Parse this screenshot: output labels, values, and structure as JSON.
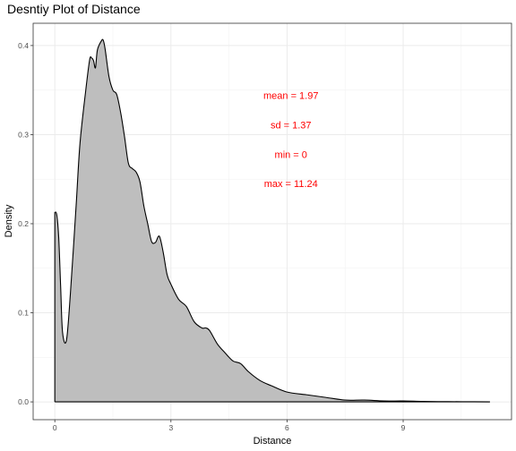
{
  "chart_data": {
    "type": "area",
    "title": "Desntiy Plot of Distance",
    "xlabel": "Distance",
    "ylabel": "Density",
    "xlim": [
      -0.56,
      11.8
    ],
    "ylim": [
      -0.02,
      0.425
    ],
    "x_ticks": [
      0,
      3,
      6,
      9
    ],
    "x_tick_labels": [
      "0",
      "3",
      "6",
      "9"
    ],
    "y_ticks": [
      0.0,
      0.1,
      0.2,
      0.3,
      0.4
    ],
    "y_tick_labels": [
      "0.0",
      "0.1",
      "0.2",
      "0.3",
      "0.4"
    ],
    "grid": true,
    "fill_color": "#bebebe",
    "line_color": "#000000",
    "annotation_color": "#ff0000",
    "annotations": [
      {
        "text": "mean = 1.97",
        "x": 6.1,
        "y": 0.34
      },
      {
        "text": "sd = 1.37",
        "x": 6.1,
        "y": 0.307
      },
      {
        "text": "min = 0",
        "x": 6.1,
        "y": 0.274
      },
      {
        "text": "max = 11.24",
        "x": 6.1,
        "y": 0.241
      }
    ],
    "x": [
      0,
      0.05,
      0.1,
      0.15,
      0.2,
      0.3,
      0.4,
      0.55,
      0.65,
      0.8,
      0.9,
      0.95,
      1.0,
      1.05,
      1.1,
      1.2,
      1.25,
      1.3,
      1.4,
      1.5,
      1.6,
      1.7,
      1.8,
      1.9,
      2.0,
      2.1,
      2.2,
      2.3,
      2.4,
      2.5,
      2.6,
      2.7,
      2.8,
      2.9,
      3.0,
      3.2,
      3.4,
      3.6,
      3.8,
      3.9,
      4.0,
      4.2,
      4.4,
      4.6,
      4.8,
      5.0,
      5.3,
      5.6,
      6.0,
      6.5,
      7.0,
      7.5,
      8.0,
      8.5,
      9.0,
      9.5,
      10.0,
      10.5,
      11.24
    ],
    "y": [
      0.213,
      0.21,
      0.185,
      0.13,
      0.078,
      0.069,
      0.12,
      0.22,
      0.29,
      0.35,
      0.384,
      0.386,
      0.383,
      0.375,
      0.395,
      0.405,
      0.406,
      0.396,
      0.365,
      0.35,
      0.345,
      0.325,
      0.298,
      0.268,
      0.262,
      0.258,
      0.247,
      0.22,
      0.2,
      0.18,
      0.179,
      0.186,
      0.168,
      0.143,
      0.132,
      0.115,
      0.107,
      0.09,
      0.083,
      0.083,
      0.08,
      0.065,
      0.055,
      0.046,
      0.043,
      0.034,
      0.024,
      0.018,
      0.011,
      0.008,
      0.005,
      0.002,
      0.002,
      0.001,
      0.001,
      0.0005,
      0.0003,
      0.0002,
      0.0
    ]
  }
}
